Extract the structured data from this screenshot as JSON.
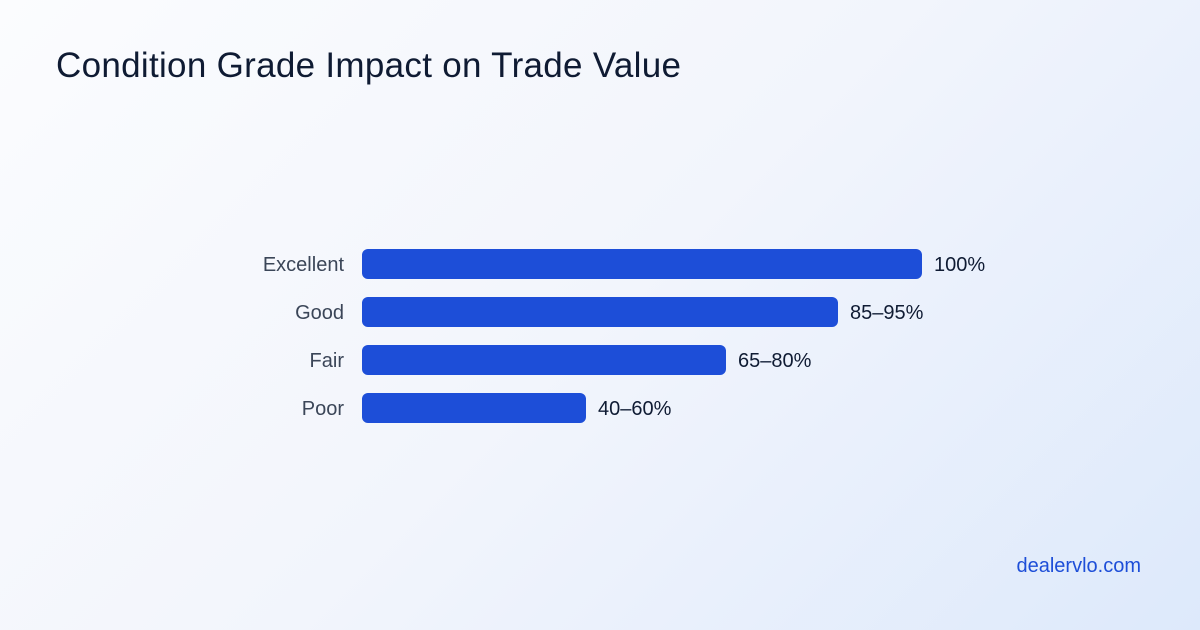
{
  "chart_data": {
    "type": "bar",
    "orientation": "horizontal",
    "title": "Condition Grade Impact on Trade Value",
    "categories": [
      "Excellent",
      "Good",
      "Fair",
      "Poor"
    ],
    "values": [
      100,
      85,
      65,
      40
    ],
    "value_labels": [
      "100%",
      "85–95%",
      "65–80%",
      "40–60%"
    ],
    "xlim": [
      0,
      100
    ],
    "grid": false,
    "legend": "none",
    "bar_color": "#1d4ed8"
  },
  "footer": {
    "brand": "dealervlo.com"
  }
}
